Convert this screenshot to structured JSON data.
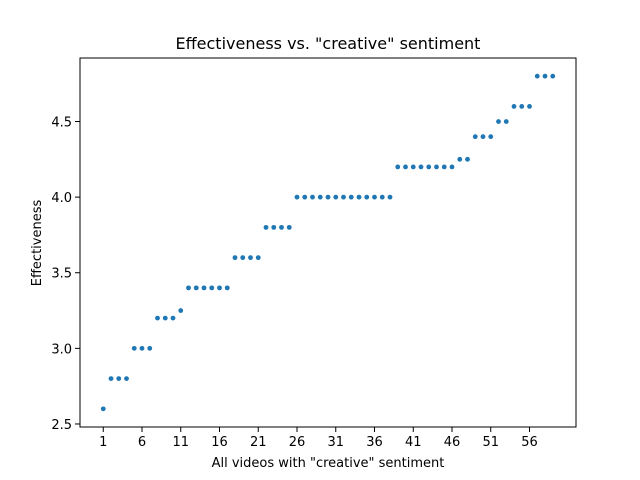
{
  "chart_data": {
    "type": "scatter",
    "title": "Effectiveness vs. \"creative\" sentiment",
    "xlabel": "All videos with \"creative\" sentiment",
    "ylabel": "Effectiveness",
    "xlim": [
      -2,
      62
    ],
    "ylim": [
      2.48,
      4.92
    ],
    "xticks": [
      1,
      6,
      11,
      16,
      21,
      26,
      31,
      36,
      41,
      46,
      51,
      56
    ],
    "yticks": [
      2.5,
      3.0,
      3.5,
      4.0,
      4.5
    ],
    "ytick_labels": [
      "2.5",
      "3.0",
      "3.5",
      "4.0",
      "4.5"
    ],
    "grid": false,
    "marker_color": "#1f77b4",
    "x": [
      1,
      2,
      3,
      4,
      5,
      6,
      7,
      8,
      9,
      10,
      11,
      12,
      13,
      14,
      15,
      16,
      17,
      18,
      19,
      20,
      21,
      22,
      23,
      24,
      25,
      26,
      27,
      28,
      29,
      30,
      31,
      32,
      33,
      34,
      35,
      36,
      37,
      38,
      39,
      40,
      41,
      42,
      43,
      44,
      45,
      46,
      47,
      48,
      49,
      50,
      51,
      52,
      53,
      54,
      55,
      56,
      57,
      58,
      59
    ],
    "y": [
      2.6,
      2.8,
      2.8,
      2.8,
      3.0,
      3.0,
      3.0,
      3.2,
      3.2,
      3.2,
      3.25,
      3.4,
      3.4,
      3.4,
      3.4,
      3.4,
      3.4,
      3.6,
      3.6,
      3.6,
      3.6,
      3.8,
      3.8,
      3.8,
      3.8,
      4.0,
      4.0,
      4.0,
      4.0,
      4.0,
      4.0,
      4.0,
      4.0,
      4.0,
      4.0,
      4.0,
      4.0,
      4.0,
      4.2,
      4.2,
      4.2,
      4.2,
      4.2,
      4.2,
      4.2,
      4.2,
      4.25,
      4.25,
      4.4,
      4.4,
      4.4,
      4.5,
      4.5,
      4.6,
      4.6,
      4.6,
      4.8,
      4.8,
      4.8
    ]
  }
}
